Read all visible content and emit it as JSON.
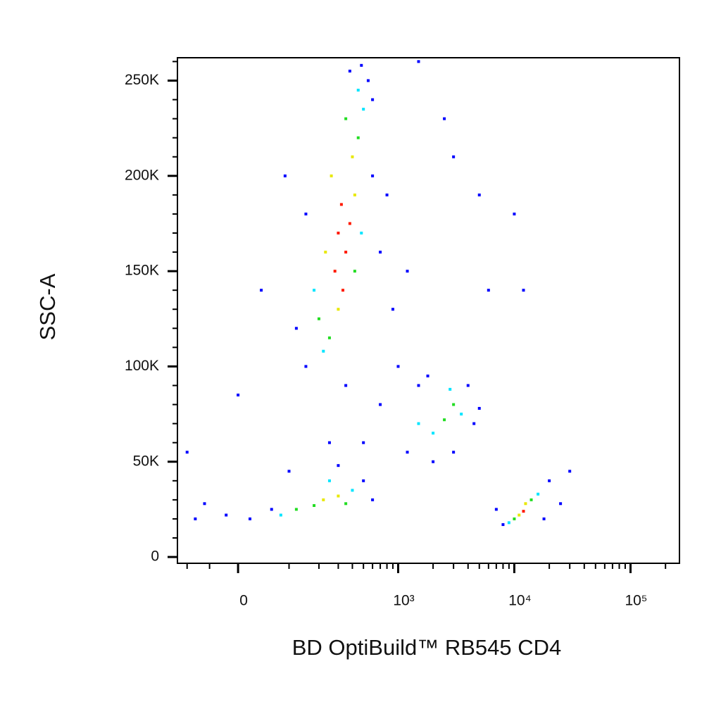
{
  "chart_data": {
    "type": "scatter",
    "x_label": "BD OptiBuild™ RB545 CD4",
    "y_label": "SSC-A",
    "xscale": "arcsinh",
    "xscale_cofactor": 84,
    "xlim": [
      -127,
      263700
    ],
    "ylim": [
      -3300,
      262000
    ],
    "xticks": [
      0,
      {
        "value": 1000,
        "label": "10³"
      },
      {
        "value": 10000,
        "label": "10⁴"
      },
      {
        "value": 100000,
        "label": "10⁵"
      }
    ],
    "xminorticks": [
      -100,
      -50,
      100,
      200,
      300,
      400,
      500,
      600,
      700,
      800,
      900,
      2000,
      3000,
      4000,
      5000,
      6000,
      7000,
      8000,
      9000,
      20000,
      30000,
      40000,
      50000,
      60000,
      70000,
      80000,
      90000,
      200000
    ],
    "yticks": [
      0,
      {
        "value": 50000,
        "label": "50K"
      },
      {
        "value": 100000,
        "label": "100K"
      },
      {
        "value": 150000,
        "label": "150K"
      },
      {
        "value": 200000,
        "label": "200K"
      },
      {
        "value": 250000,
        "label": "250K"
      }
    ],
    "yminorticks": [
      10000,
      20000,
      30000,
      40000,
      60000,
      70000,
      80000,
      90000,
      110000,
      120000,
      130000,
      140000,
      160000,
      170000,
      180000,
      190000,
      210000,
      220000,
      230000,
      240000,
      260000
    ],
    "series": [
      {
        "color": "#0000ff",
        "x": [
          480,
          550,
          380,
          600,
          700,
          900,
          150,
          120,
          600,
          800,
          1200,
          150,
          1000,
          700,
          500,
          60,
          20,
          -20,
          -60,
          -80,
          100,
          300,
          500,
          600,
          1500,
          1200,
          4500,
          4000,
          2000,
          3000,
          5000,
          1800,
          8000,
          20000,
          25000,
          7000,
          18000,
          10000,
          12000,
          5000,
          3000,
          1500,
          2500,
          40,
          -100,
          0,
          90,
          350,
          250,
          6000,
          30000
        ],
        "values": [
          258000,
          250000,
          255000,
          200000,
          160000,
          130000,
          180000,
          120000,
          240000,
          190000,
          150000,
          100000,
          100000,
          80000,
          60000,
          25000,
          20000,
          22000,
          28000,
          20000,
          45000,
          48000,
          40000,
          30000,
          90000,
          55000,
          70000,
          90000,
          50000,
          55000,
          78000,
          95000,
          17000,
          40000,
          28000,
          25000,
          20000,
          180000,
          140000,
          190000,
          210000,
          260000,
          230000,
          140000,
          55000,
          85000,
          200000,
          90000,
          60000,
          140000,
          45000
        ]
      },
      {
        "color": "#00e5ff",
        "x": [
          450,
          500,
          180,
          480,
          220,
          80,
          400,
          250,
          16000,
          9000,
          2000,
          3500,
          1500,
          2800
        ],
        "values": [
          245000,
          235000,
          140000,
          170000,
          108000,
          22000,
          35000,
          40000,
          33000,
          18000,
          65000,
          75000,
          70000,
          88000
        ]
      },
      {
        "color": "#22dd22",
        "x": [
          350,
          450,
          200,
          250,
          420,
          180,
          350,
          120,
          14000,
          10000,
          2500,
          3000
        ],
        "values": [
          230000,
          220000,
          125000,
          115000,
          150000,
          27000,
          28000,
          25000,
          30000,
          20000,
          72000,
          80000
        ]
      },
      {
        "color": "#e8e800",
        "x": [
          260,
          400,
          300,
          420,
          230,
          220,
          300,
          12500,
          11000
        ],
        "values": [
          200000,
          210000,
          130000,
          190000,
          160000,
          30000,
          32000,
          28000,
          22000
        ]
      },
      {
        "color": "#ff1a00",
        "x": [
          300,
          350,
          320,
          380,
          280,
          330,
          12000
        ],
        "values": [
          170000,
          160000,
          185000,
          175000,
          150000,
          140000,
          24000
        ]
      }
    ]
  }
}
